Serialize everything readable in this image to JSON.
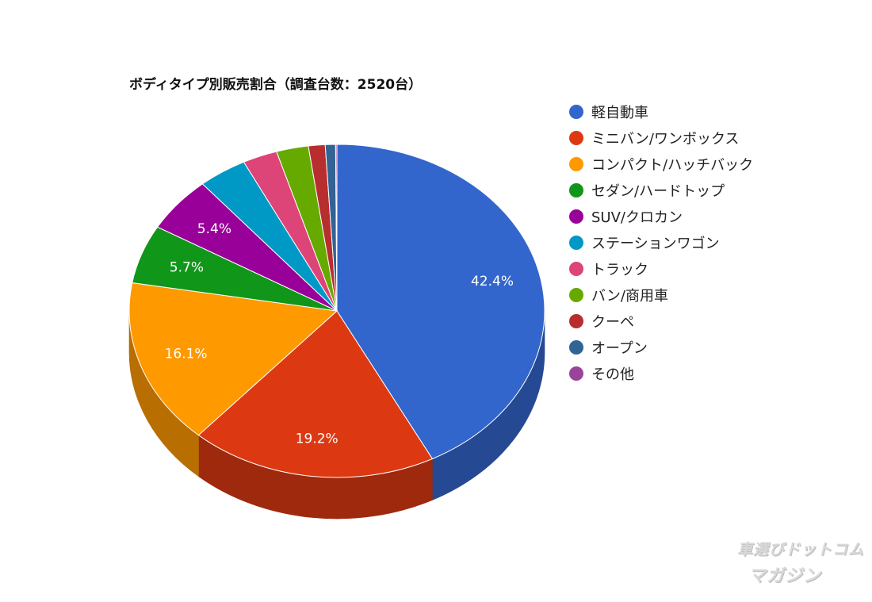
{
  "chart_data": {
    "type": "pie",
    "style": "3d",
    "title": "ボディタイプ別販売割合（調査台数：2520台）",
    "total_units": 2520,
    "legend_position": "right",
    "slices": [
      {
        "label": "軽自動車",
        "value": 42.4,
        "display": "42.4%",
        "color": "#3366cc"
      },
      {
        "label": "ミニバン/ワンボックス",
        "value": 19.2,
        "display": "19.2%",
        "color": "#dc3912"
      },
      {
        "label": "コンパクト/ハッチバック",
        "value": 16.1,
        "display": "16.1%",
        "color": "#ff9900"
      },
      {
        "label": "セダン/ハードトップ",
        "value": 5.7,
        "display": "5.7%",
        "color": "#109618"
      },
      {
        "label": "SUV/クロカン",
        "value": 5.4,
        "display": "5.4%",
        "color": "#990099"
      },
      {
        "label": "ステーションワゴン",
        "value": 3.8,
        "display": "",
        "color": "#0099c6"
      },
      {
        "label": "トラック",
        "value": 2.7,
        "display": "",
        "color": "#dd4477"
      },
      {
        "label": "バン/商用車",
        "value": 2.5,
        "display": "",
        "color": "#66aa00"
      },
      {
        "label": "クーペ",
        "value": 1.3,
        "display": "",
        "color": "#b82e2e"
      },
      {
        "label": "オープン",
        "value": 0.8,
        "display": "",
        "color": "#316395"
      },
      {
        "label": "その他",
        "value": 0.1,
        "display": "",
        "color": "#994499"
      }
    ]
  },
  "watermark": {
    "line1": "車選びドットコム",
    "line2": "マガジン"
  }
}
